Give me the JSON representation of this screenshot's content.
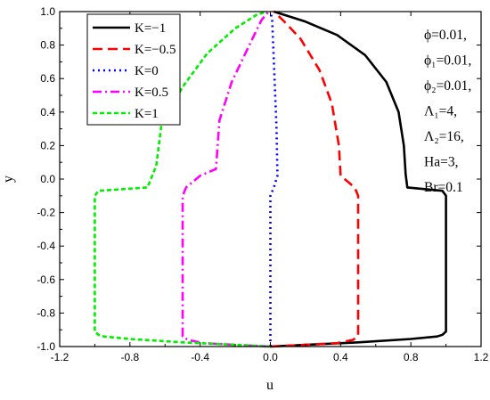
{
  "chart_data": {
    "type": "line",
    "title": "",
    "xlabel": "u",
    "ylabel": "y",
    "xlim": [
      -1.2,
      1.2
    ],
    "ylim": [
      -1.0,
      1.0
    ],
    "xticks": [
      "-1.2",
      "-0.8",
      "-0.4",
      "0.0",
      "0.4",
      "0.8",
      "1.2"
    ],
    "yticks": [
      "1.0",
      "0.8",
      "0.6",
      "0.4",
      "0.2",
      "0.0",
      "-0.2",
      "-0.4",
      "-0.6",
      "-0.8",
      "-1.0"
    ],
    "grid": false,
    "legend": "top-left",
    "annotations": [
      "ϕ=0.01,",
      "ϕ₁=0.01,",
      "ϕ₂=0.01,",
      "Λ₁=4,",
      "Λ₂=16,",
      "Ha=3,",
      "Br=0.1"
    ],
    "series": [
      {
        "name": "K=−1",
        "color": "#000000",
        "style": "solid",
        "points": [
          [
            0.0,
            -1.0
          ],
          [
            0.2,
            -0.99
          ],
          [
            0.5,
            -0.975
          ],
          [
            0.8,
            -0.955
          ],
          [
            0.95,
            -0.94
          ],
          [
            0.98,
            -0.93
          ],
          [
            1.0,
            -0.91
          ],
          [
            1.0,
            -0.1
          ],
          [
            0.98,
            -0.07
          ],
          [
            0.78,
            -0.05
          ],
          [
            0.77,
            0.03
          ],
          [
            0.76,
            0.2
          ],
          [
            0.73,
            0.4
          ],
          [
            0.66,
            0.58
          ],
          [
            0.54,
            0.74
          ],
          [
            0.38,
            0.86
          ],
          [
            0.2,
            0.94
          ],
          [
            0.08,
            0.98
          ],
          [
            0.02,
            1.0
          ]
        ]
      },
      {
        "name": "K=−0.5",
        "color": "#ff0000",
        "style": "dash",
        "points": [
          [
            0.0,
            -1.0
          ],
          [
            0.2,
            -0.99
          ],
          [
            0.38,
            -0.98
          ],
          [
            0.47,
            -0.96
          ],
          [
            0.5,
            -0.94
          ],
          [
            0.5,
            -0.1
          ],
          [
            0.48,
            -0.05
          ],
          [
            0.4,
            0.02
          ],
          [
            0.39,
            0.2
          ],
          [
            0.35,
            0.45
          ],
          [
            0.28,
            0.65
          ],
          [
            0.17,
            0.84
          ],
          [
            0.07,
            0.95
          ],
          [
            0.02,
            1.0
          ]
        ]
      },
      {
        "name": "K=0",
        "color": "#0000ff",
        "style": "dot",
        "points": [
          [
            0.0,
            -1.0
          ],
          [
            0.0,
            -0.1
          ],
          [
            0.02,
            -0.05
          ],
          [
            0.04,
            0.02
          ],
          [
            0.035,
            0.3
          ],
          [
            0.02,
            0.7
          ],
          [
            0.01,
            0.95
          ],
          [
            0.0,
            1.0
          ]
        ]
      },
      {
        "name": "K=0.5",
        "color": "#ff00ff",
        "style": "dashdot",
        "points": [
          [
            0.0,
            -1.0
          ],
          [
            -0.2,
            -0.99
          ],
          [
            -0.38,
            -0.98
          ],
          [
            -0.47,
            -0.96
          ],
          [
            -0.5,
            -0.94
          ],
          [
            -0.5,
            -0.1
          ],
          [
            -0.48,
            -0.05
          ],
          [
            -0.4,
            0.02
          ],
          [
            -0.31,
            0.06
          ],
          [
            -0.29,
            0.35
          ],
          [
            -0.22,
            0.58
          ],
          [
            -0.12,
            0.8
          ],
          [
            -0.05,
            0.95
          ],
          [
            -0.01,
            1.0
          ]
        ]
      },
      {
        "name": "K=1",
        "color": "#00ee00",
        "style": "shortdash",
        "points": [
          [
            0.0,
            -1.0
          ],
          [
            -0.2,
            -0.99
          ],
          [
            -0.5,
            -0.975
          ],
          [
            -0.8,
            -0.955
          ],
          [
            -0.95,
            -0.94
          ],
          [
            -0.98,
            -0.93
          ],
          [
            -1.0,
            -0.91
          ],
          [
            -1.0,
            -0.1
          ],
          [
            -0.98,
            -0.07
          ],
          [
            -0.7,
            -0.05
          ],
          [
            -0.65,
            0.08
          ],
          [
            -0.62,
            0.33
          ],
          [
            -0.5,
            0.55
          ],
          [
            -0.36,
            0.75
          ],
          [
            -0.2,
            0.9
          ],
          [
            -0.08,
            0.98
          ],
          [
            -0.02,
            1.0
          ]
        ]
      }
    ]
  }
}
